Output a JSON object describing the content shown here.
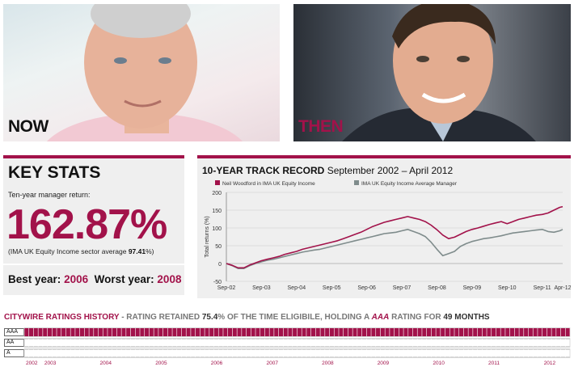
{
  "photos": {
    "now_label": "NOW",
    "then_label": "THEN"
  },
  "key_stats": {
    "title": "KEY STATS",
    "subtitle": "Ten-year manager return:",
    "big_value": "162.87%",
    "sector_prefix": "(IMA UK Equity Income sector average ",
    "sector_value": "97.41",
    "sector_suffix": "%)"
  },
  "years": {
    "best_label": "Best year:",
    "best_value": "2006",
    "worst_label": "Worst year:",
    "worst_value": "2008"
  },
  "colors": {
    "accent": "#a2124a",
    "series_b": "#7f8c8c",
    "panel": "#efefef"
  },
  "chart_data": {
    "type": "line",
    "title_bold": "10-YEAR TRACK RECORD",
    "title_rest": "September 2002 – April 2012",
    "ylabel": "Total returns (%)",
    "ylim": [
      -50,
      200
    ],
    "yticks": [
      -50,
      0,
      50,
      100,
      150,
      200
    ],
    "xlim": [
      0,
      115
    ],
    "x_ticks": [
      {
        "label": "Sep-02",
        "x": 0
      },
      {
        "label": "Sep-03",
        "x": 12
      },
      {
        "label": "Sep-04",
        "x": 24
      },
      {
        "label": "Sep-05",
        "x": 36
      },
      {
        "label": "Sep-06",
        "x": 48
      },
      {
        "label": "Sep-07",
        "x": 60
      },
      {
        "label": "Sep-08",
        "x": 72
      },
      {
        "label": "Sep-09",
        "x": 84
      },
      {
        "label": "Sep-10",
        "x": 96
      },
      {
        "label": "Sep-11",
        "x": 108
      },
      {
        "label": "Apr-12",
        "x": 115
      }
    ],
    "legend_position": "top",
    "series": [
      {
        "name": "Neil Woodford in IMA UK Equity Income",
        "color": "#a2124a",
        "x": [
          0,
          2,
          4,
          6,
          8,
          10,
          12,
          14,
          16,
          18,
          20,
          22,
          24,
          26,
          28,
          30,
          32,
          34,
          36,
          38,
          40,
          42,
          44,
          46,
          48,
          50,
          52,
          54,
          56,
          58,
          60,
          62,
          64,
          66,
          68,
          70,
          72,
          74,
          76,
          78,
          80,
          82,
          84,
          86,
          88,
          90,
          92,
          94,
          96,
          98,
          100,
          102,
          104,
          106,
          108,
          110,
          112,
          114,
          115
        ],
        "values": [
          0,
          -5,
          -12,
          -12,
          -4,
          2,
          8,
          12,
          16,
          20,
          26,
          30,
          34,
          40,
          44,
          48,
          52,
          56,
          60,
          64,
          70,
          76,
          82,
          88,
          96,
          104,
          110,
          116,
          120,
          124,
          128,
          132,
          128,
          124,
          118,
          108,
          95,
          80,
          70,
          74,
          82,
          90,
          96,
          100,
          105,
          110,
          114,
          118,
          112,
          118,
          124,
          128,
          132,
          136,
          138,
          142,
          150,
          158,
          160
        ]
      },
      {
        "name": "IMA UK Equity Income Average Manager",
        "color": "#7f8c8c",
        "x": [
          0,
          2,
          4,
          6,
          8,
          10,
          12,
          14,
          16,
          18,
          20,
          22,
          24,
          26,
          28,
          30,
          32,
          34,
          36,
          38,
          40,
          42,
          44,
          46,
          48,
          50,
          52,
          54,
          56,
          58,
          60,
          62,
          64,
          66,
          68,
          70,
          72,
          74,
          76,
          78,
          80,
          82,
          84,
          86,
          88,
          90,
          92,
          94,
          96,
          98,
          100,
          102,
          104,
          106,
          108,
          110,
          112,
          114,
          115
        ],
        "values": [
          0,
          -6,
          -14,
          -14,
          -6,
          0,
          5,
          9,
          12,
          16,
          20,
          24,
          28,
          32,
          35,
          38,
          40,
          44,
          48,
          52,
          56,
          60,
          64,
          68,
          72,
          76,
          80,
          84,
          86,
          88,
          92,
          96,
          90,
          84,
          76,
          60,
          40,
          22,
          28,
          34,
          48,
          56,
          62,
          66,
          70,
          72,
          75,
          78,
          82,
          86,
          88,
          90,
          92,
          94,
          96,
          90,
          88,
          92,
          96
        ]
      }
    ]
  },
  "ratings": {
    "title_part1": "CITYWIRE RATINGS HISTORY",
    "title_part2": " - RATING RETAINED ",
    "title_pct": "75.4",
    "title_part3": "% OF THE TIME ELIGIBILE, HOLDING A ",
    "title_aaa": "AAA",
    "title_part4": " RATING FOR ",
    "title_months": "49 MONTHS",
    "rows": [
      "AAA",
      "AA",
      "A"
    ],
    "year_labels": [
      {
        "label": "2002",
        "m": 0
      },
      {
        "label": "2003",
        "m": 4
      },
      {
        "label": "2004",
        "m": 16
      },
      {
        "label": "2005",
        "m": 28
      },
      {
        "label": "2006",
        "m": 40
      },
      {
        "label": "2007",
        "m": 52
      },
      {
        "label": "2008",
        "m": 64
      },
      {
        "label": "2009",
        "m": 76
      },
      {
        "label": "2010",
        "m": 88
      },
      {
        "label": "2011",
        "m": 100
      },
      {
        "label": "2012",
        "m": 112
      }
    ],
    "months": 118,
    "history": "AAAAAAAAAAAAAAAAAAAAAAAAAAAAAAAAAAAAAAAAAAAAAAAAAAAAAAAAAAAAAAAAAAAAAAAAAAAAAAAAAAAAAAAAAAAAAAAAAAAAAAAAAAAAAAAAAAAAAA"
  }
}
